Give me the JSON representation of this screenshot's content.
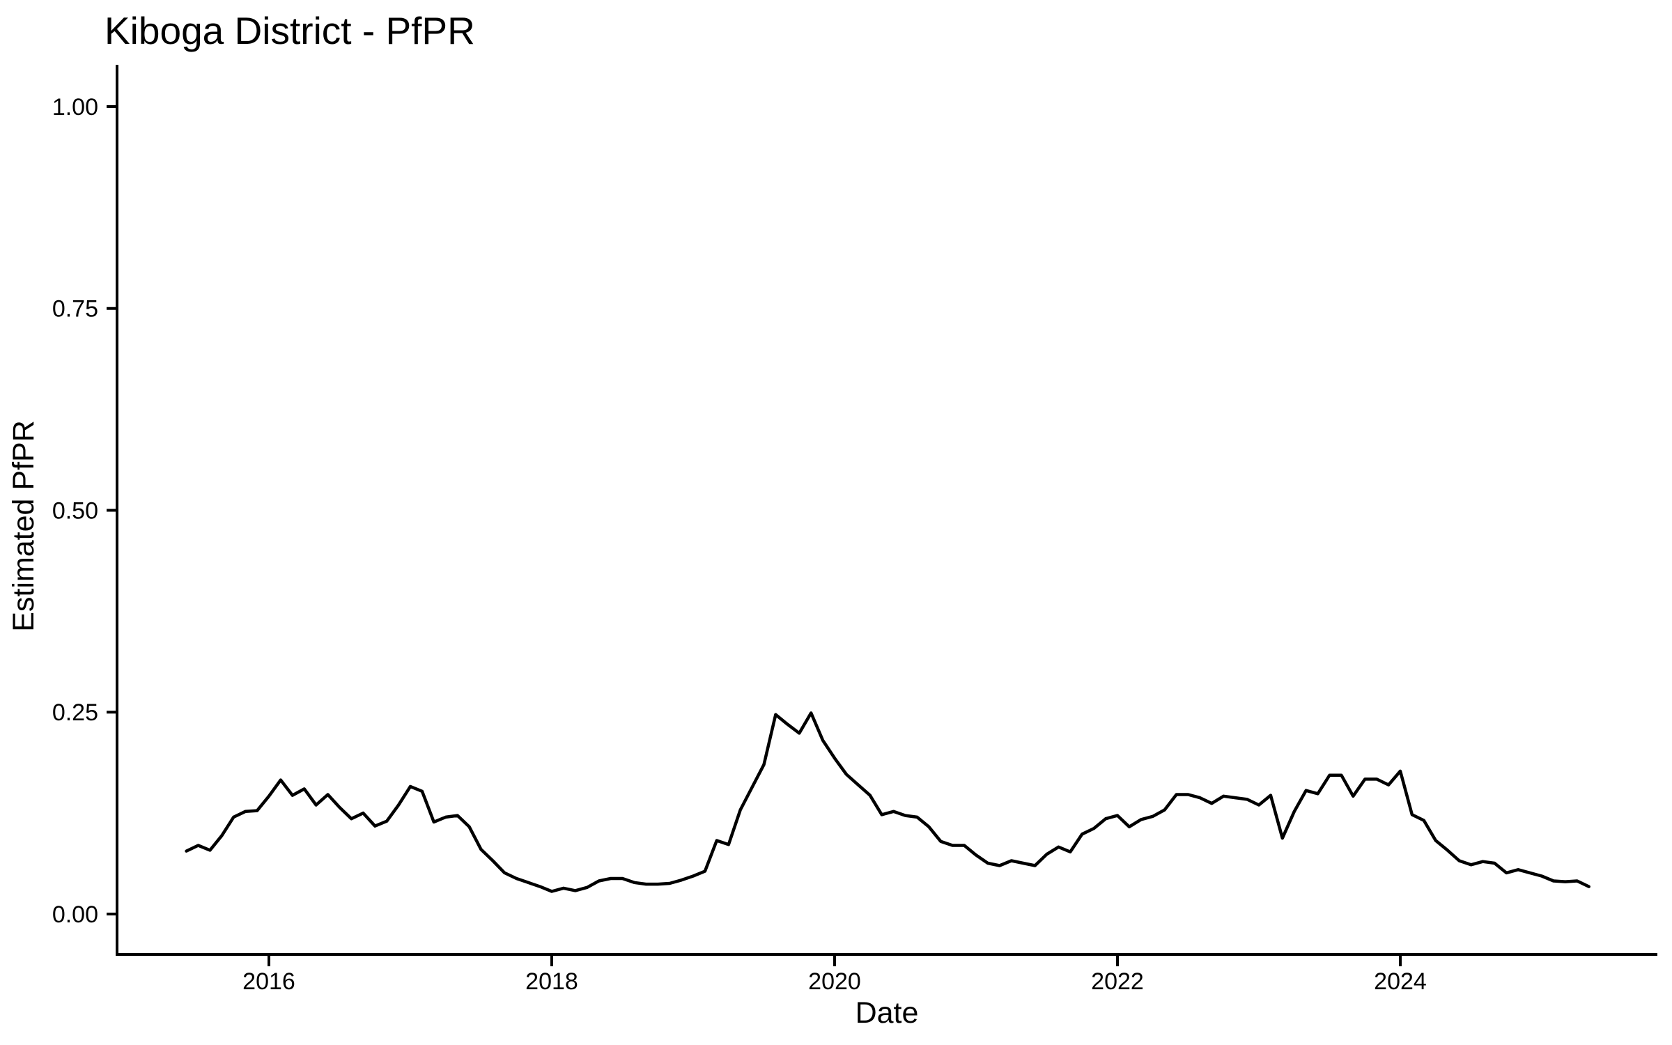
{
  "page": {
    "background_color": "#ffffff",
    "text_color": "#000000"
  },
  "chart_data": {
    "type": "line",
    "title": "Kiboga District - PfPR",
    "xlabel": "Date",
    "ylabel": "Estimated PfPR",
    "grid": false,
    "legend_position": "none",
    "line_color": "#000000",
    "axis_color": "#000000",
    "ylim": [
      0,
      1.05
    ],
    "xlim_years": [
      2015.42,
      2025.42
    ],
    "y_ticks": [
      {
        "label": "0.00",
        "value": 0.0
      },
      {
        "label": "0.25",
        "value": 0.25
      },
      {
        "label": "0.50",
        "value": 0.5
      },
      {
        "label": "0.75",
        "value": 0.75
      },
      {
        "label": "1.00",
        "value": 1.0
      }
    ],
    "x_ticks": [
      {
        "label": "2016",
        "year": 2016
      },
      {
        "label": "2018",
        "year": 2018
      },
      {
        "label": "2020",
        "year": 2020
      },
      {
        "label": "2022",
        "year": 2022
      },
      {
        "label": "2024",
        "year": 2024
      }
    ],
    "x": [
      "2015-06",
      "2015-07",
      "2015-08",
      "2015-09",
      "2015-10",
      "2015-11",
      "2015-12",
      "2016-01",
      "2016-02",
      "2016-03",
      "2016-04",
      "2016-05",
      "2016-06",
      "2016-07",
      "2016-08",
      "2016-09",
      "2016-10",
      "2016-11",
      "2016-12",
      "2017-01",
      "2017-02",
      "2017-03",
      "2017-04",
      "2017-05",
      "2017-06",
      "2017-07",
      "2017-08",
      "2017-09",
      "2017-10",
      "2017-11",
      "2017-12",
      "2018-01",
      "2018-02",
      "2018-03",
      "2018-04",
      "2018-05",
      "2018-06",
      "2018-07",
      "2018-08",
      "2018-09",
      "2018-10",
      "2018-11",
      "2018-12",
      "2019-01",
      "2019-02",
      "2019-03",
      "2019-04",
      "2019-05",
      "2019-06",
      "2019-07",
      "2019-08",
      "2019-09",
      "2019-10",
      "2019-11",
      "2019-12",
      "2020-01",
      "2020-02",
      "2020-03",
      "2020-04",
      "2020-05",
      "2020-06",
      "2020-07",
      "2020-08",
      "2020-09",
      "2020-10",
      "2020-11",
      "2020-12",
      "2021-01",
      "2021-02",
      "2021-03",
      "2021-04",
      "2021-05",
      "2021-06",
      "2021-07",
      "2021-08",
      "2021-09",
      "2021-10",
      "2021-11",
      "2021-12",
      "2022-01",
      "2022-02",
      "2022-03",
      "2022-04",
      "2022-05",
      "2022-06",
      "2022-07",
      "2022-08",
      "2022-09",
      "2022-10",
      "2022-11",
      "2022-12",
      "2023-01",
      "2023-02",
      "2023-03",
      "2023-04",
      "2023-05",
      "2023-06",
      "2023-07",
      "2023-08",
      "2023-09",
      "2023-10",
      "2023-11",
      "2023-12",
      "2024-01",
      "2024-02",
      "2024-03",
      "2024-04",
      "2024-05",
      "2024-06",
      "2024-07",
      "2024-08",
      "2024-09",
      "2024-10",
      "2024-11",
      "2024-12",
      "2025-01",
      "2025-02",
      "2025-03",
      "2025-04",
      "2025-05"
    ],
    "values": [
      0.078,
      0.085,
      0.079,
      0.097,
      0.12,
      0.127,
      0.128,
      0.146,
      0.166,
      0.147,
      0.155,
      0.135,
      0.148,
      0.132,
      0.118,
      0.125,
      0.109,
      0.115,
      0.135,
      0.158,
      0.152,
      0.114,
      0.12,
      0.122,
      0.108,
      0.08,
      0.066,
      0.051,
      0.044,
      0.039,
      0.034,
      0.028,
      0.032,
      0.029,
      0.033,
      0.041,
      0.044,
      0.044,
      0.039,
      0.037,
      0.037,
      0.038,
      0.042,
      0.047,
      0.053,
      0.091,
      0.086,
      0.129,
      0.157,
      0.185,
      0.247,
      0.235,
      0.224,
      0.249,
      0.215,
      0.193,
      0.173,
      0.16,
      0.147,
      0.123,
      0.127,
      0.122,
      0.12,
      0.108,
      0.09,
      0.085,
      0.085,
      0.073,
      0.063,
      0.06,
      0.066,
      0.063,
      0.06,
      0.074,
      0.083,
      0.077,
      0.099,
      0.106,
      0.118,
      0.122,
      0.108,
      0.117,
      0.121,
      0.129,
      0.148,
      0.148,
      0.144,
      0.137,
      0.146,
      0.144,
      0.142,
      0.135,
      0.147,
      0.094,
      0.127,
      0.153,
      0.149,
      0.172,
      0.172,
      0.146,
      0.167,
      0.167,
      0.16,
      0.177,
      0.123,
      0.116,
      0.091,
      0.079,
      0.066,
      0.061,
      0.065,
      0.063,
      0.051,
      0.055,
      0.051,
      0.047,
      0.041,
      0.04,
      0.041,
      0.034
    ]
  }
}
